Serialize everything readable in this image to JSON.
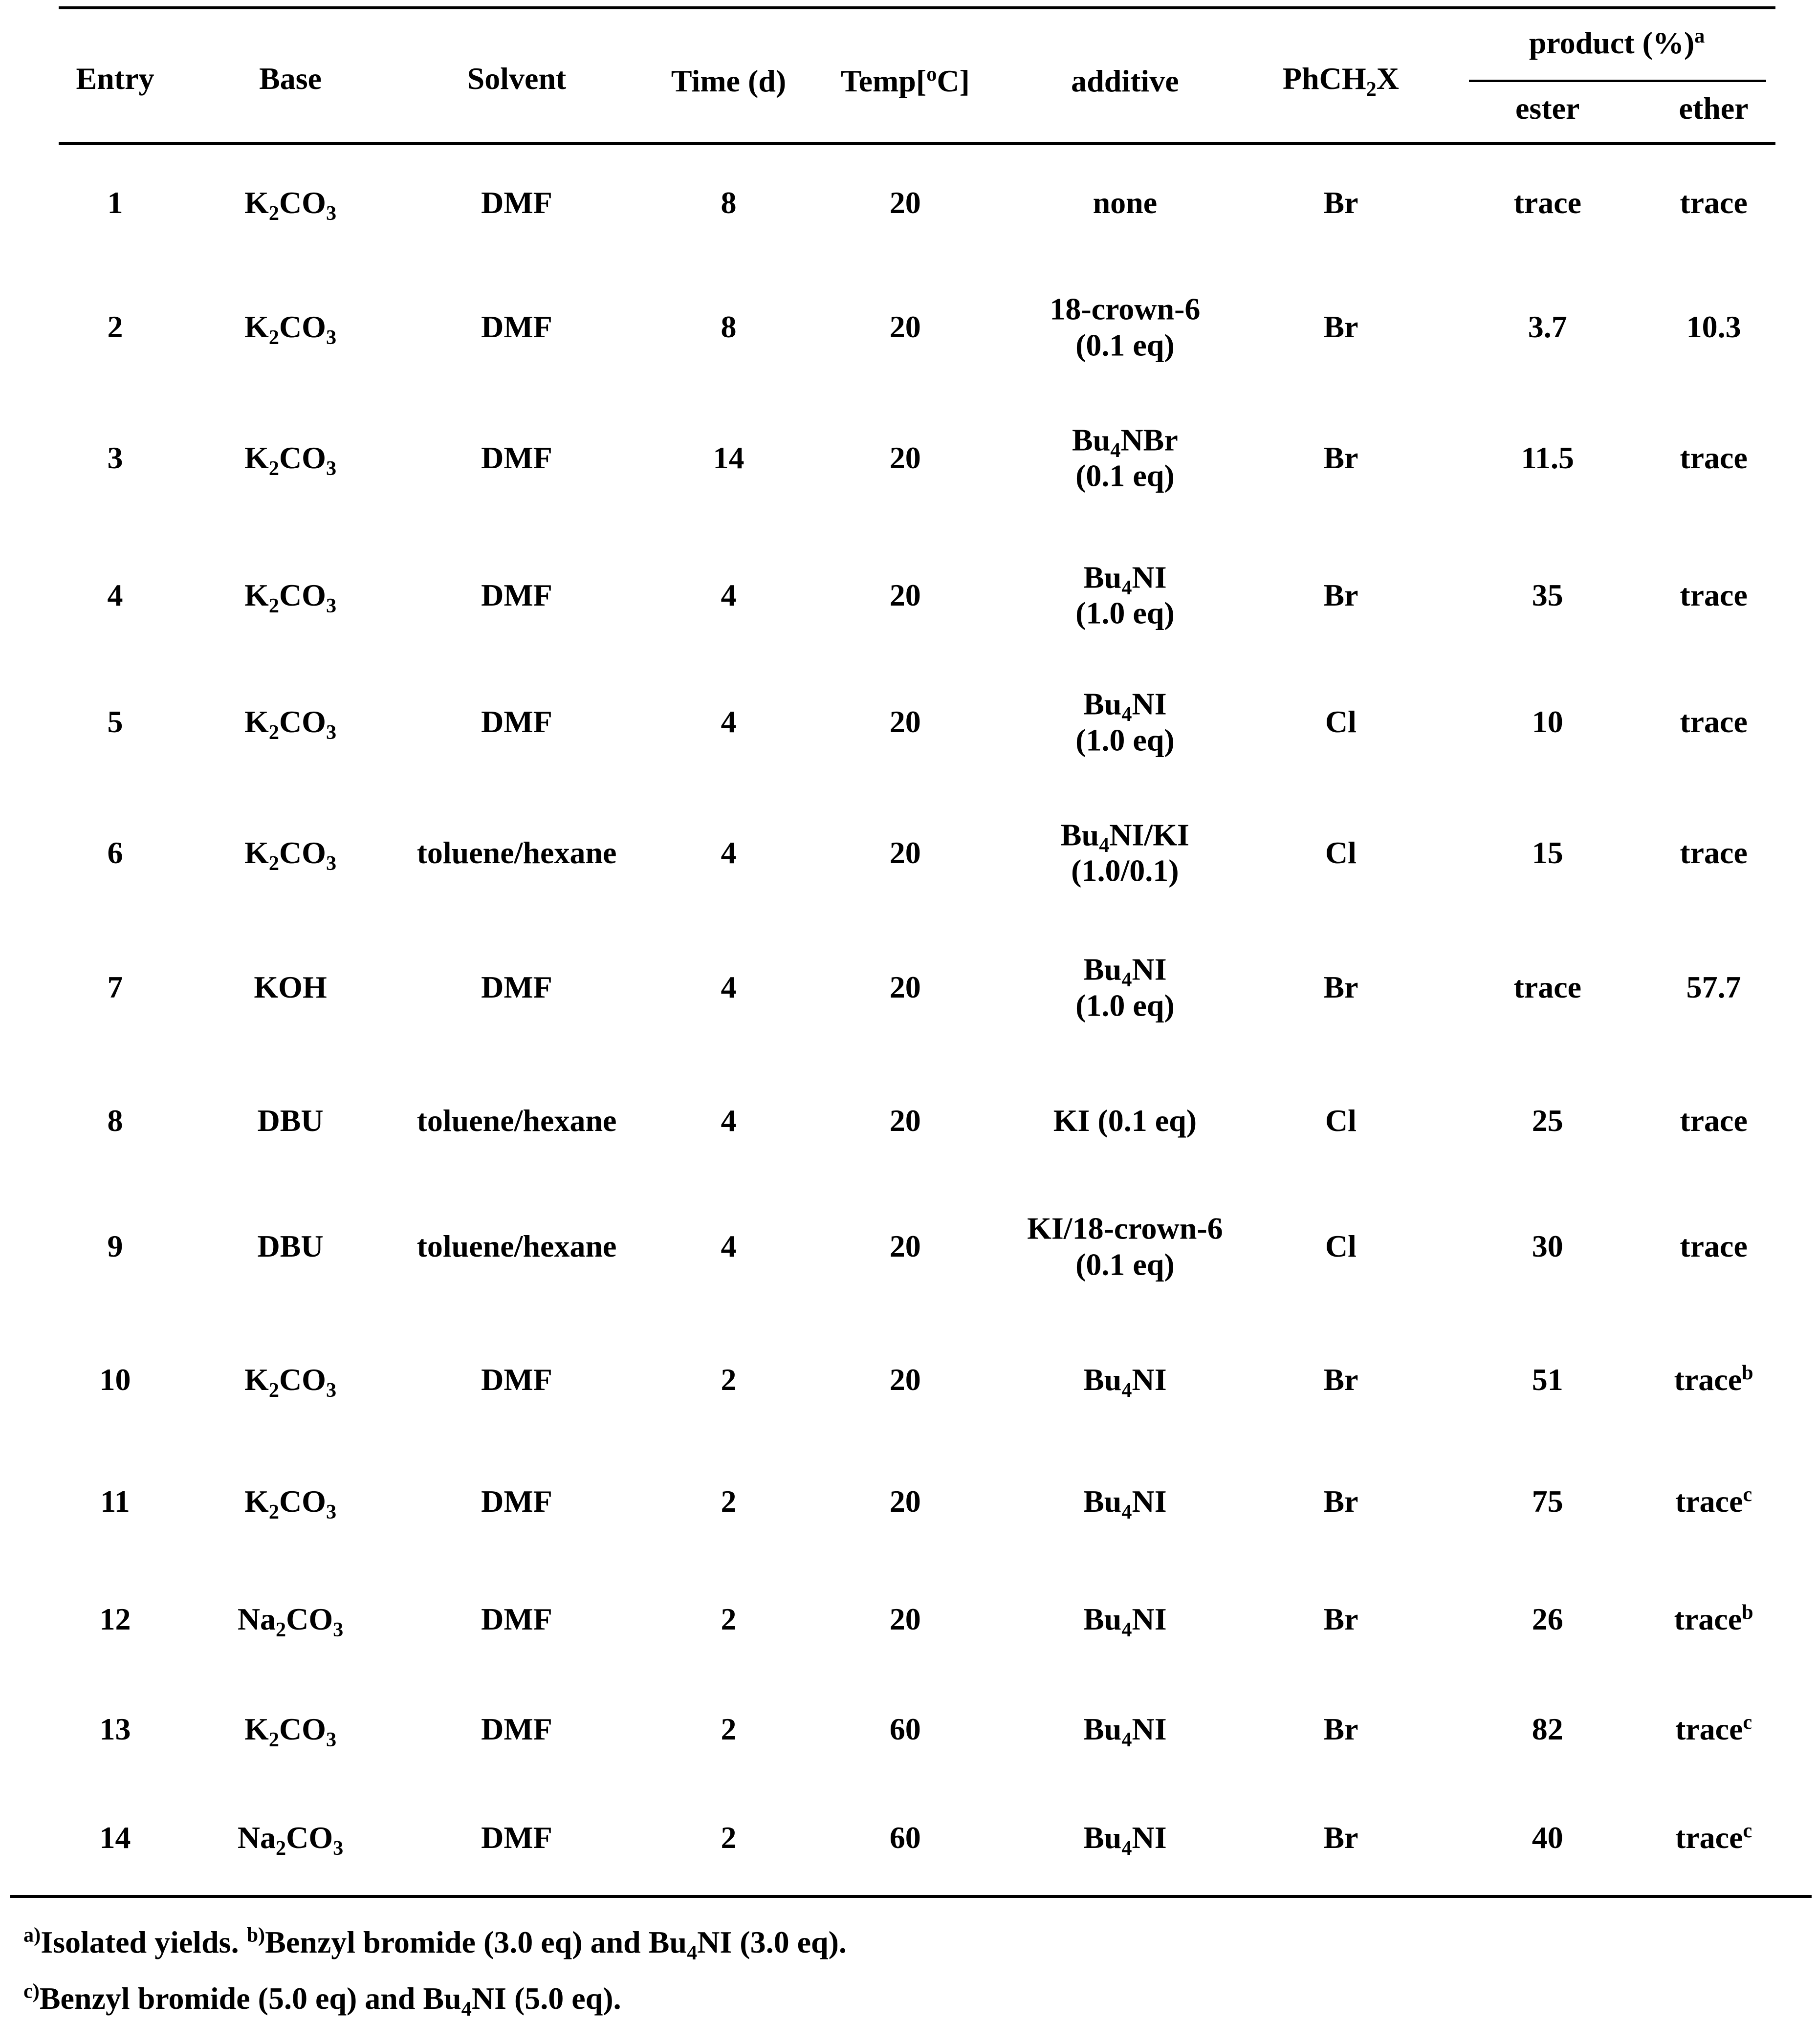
{
  "table": {
    "header": {
      "columns": [
        "Entry",
        "Base",
        "Solvent",
        "Time (d)",
        [
          "Temp[",
          {
            "sup": "o"
          },
          "C]"
        ],
        "additive",
        [
          "PhCH",
          {
            "sub": "2"
          },
          "X"
        ]
      ],
      "product": [
        "product (%)",
        {
          "sup": "a"
        }
      ],
      "subcolumns": [
        "ester",
        "ether"
      ]
    },
    "rows": [
      [
        1,
        [
          "K",
          {
            "sub": "2"
          },
          "CO",
          {
            "sub": "3"
          }
        ],
        "DMF",
        8,
        20,
        "none",
        "Br",
        "trace",
        "trace"
      ],
      [
        2,
        [
          "K",
          {
            "sub": "2"
          },
          "CO",
          {
            "sub": "3"
          }
        ],
        "DMF",
        8,
        20,
        {
          "lines": [
            "18-crown-6",
            "(0.1 eq)"
          ]
        },
        "Br",
        3.7,
        10.3
      ],
      [
        3,
        [
          "K",
          {
            "sub": "2"
          },
          "CO",
          {
            "sub": "3"
          }
        ],
        "DMF",
        14,
        20,
        {
          "lines": [
            [
              "Bu",
              {
                "sub": "4"
              },
              "NBr"
            ],
            "(0.1 eq)"
          ]
        },
        "Br",
        11.5,
        "trace"
      ],
      [
        4,
        [
          "K",
          {
            "sub": "2"
          },
          "CO",
          {
            "sub": "3"
          }
        ],
        "DMF",
        4,
        20,
        {
          "lines": [
            [
              "Bu",
              {
                "sub": "4"
              },
              "NI"
            ],
            "(1.0 eq)"
          ]
        },
        "Br",
        35,
        "trace"
      ],
      [
        5,
        [
          "K",
          {
            "sub": "2"
          },
          "CO",
          {
            "sub": "3"
          }
        ],
        "DMF",
        4,
        20,
        {
          "lines": [
            [
              "Bu",
              {
                "sub": "4"
              },
              "NI"
            ],
            "(1.0 eq)"
          ]
        },
        "Cl",
        10,
        "trace"
      ],
      [
        6,
        [
          "K",
          {
            "sub": "2"
          },
          "CO",
          {
            "sub": "3"
          }
        ],
        "toluene/hexane",
        4,
        20,
        {
          "lines": [
            [
              "Bu",
              {
                "sub": "4"
              },
              "NI/KI"
            ],
            "(1.0/0.1)"
          ]
        },
        "Cl",
        15,
        "trace"
      ],
      [
        7,
        "KOH",
        "DMF",
        4,
        20,
        {
          "lines": [
            [
              "Bu",
              {
                "sub": "4"
              },
              "NI"
            ],
            "(1.0 eq)"
          ]
        },
        "Br",
        "trace",
        57.7
      ],
      [
        8,
        "DBU",
        "toluene/hexane",
        4,
        20,
        "KI (0.1 eq)",
        "Cl",
        25,
        "trace"
      ],
      [
        9,
        "DBU",
        "toluene/hexane",
        4,
        20,
        {
          "lines": [
            "KI/18-crown-6",
            "(0.1 eq)"
          ]
        },
        "Cl",
        30,
        "trace"
      ],
      [
        10,
        [
          "K",
          {
            "sub": "2"
          },
          "CO",
          {
            "sub": "3"
          }
        ],
        "DMF",
        2,
        20,
        [
          "Bu",
          {
            "sub": "4"
          },
          "NI"
        ],
        "Br",
        51,
        [
          "trace",
          {
            "sup": "b"
          }
        ]
      ],
      [
        11,
        [
          "K",
          {
            "sub": "2"
          },
          "CO",
          {
            "sub": "3"
          }
        ],
        "DMF",
        2,
        20,
        [
          "Bu",
          {
            "sub": "4"
          },
          "NI"
        ],
        "Br",
        75,
        [
          "trace",
          {
            "sup": "c"
          }
        ]
      ],
      [
        12,
        [
          "Na",
          {
            "sub": "2"
          },
          "CO",
          {
            "sub": "3"
          }
        ],
        "DMF",
        2,
        20,
        [
          "Bu",
          {
            "sub": "4"
          },
          "NI"
        ],
        "Br",
        26,
        [
          "trace",
          {
            "sup": "b"
          }
        ]
      ],
      [
        13,
        [
          "K",
          {
            "sub": "2"
          },
          "CO",
          {
            "sub": "3"
          }
        ],
        "DMF",
        2,
        60,
        [
          "Bu",
          {
            "sub": "4"
          },
          "NI"
        ],
        "Br",
        82,
        [
          "trace",
          {
            "sup": "c"
          }
        ]
      ],
      [
        14,
        [
          "Na",
          {
            "sub": "2"
          },
          "CO",
          {
            "sub": "3"
          }
        ],
        "DMF",
        2,
        60,
        [
          "Bu",
          {
            "sub": "4"
          },
          "NI"
        ],
        "Br",
        40,
        [
          "trace",
          {
            "sup": "c"
          }
        ]
      ]
    ],
    "footnotes": [
      [
        {
          "sup": "a)"
        },
        "Isolated yields. ",
        {
          "sup": "b)"
        },
        "Benzyl bromide (3.0 eq) and Bu",
        {
          "sub": "4"
        },
        "NI (3.0 eq)."
      ],
      [
        {
          "sup": "c)"
        },
        "Benzyl bromide (5.0 eq) and Bu",
        {
          "sub": "4"
        },
        "NI (5.0 eq)."
      ]
    ]
  }
}
